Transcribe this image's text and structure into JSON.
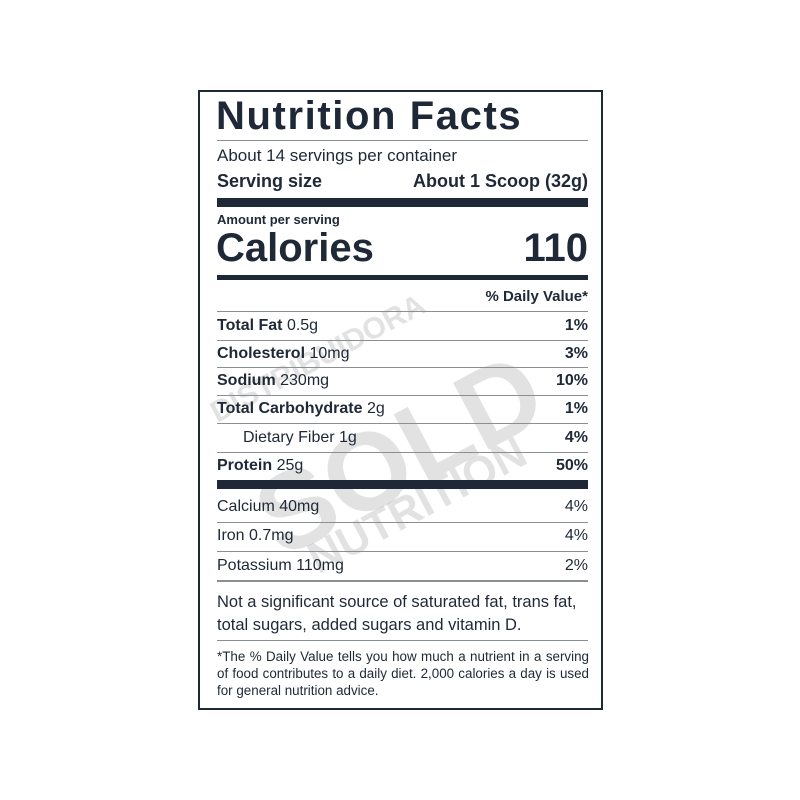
{
  "title": "Nutrition Facts",
  "servings_per_container": "About 14 servings per container",
  "serving_size_label": "Serving size",
  "serving_size_value": "About 1 Scoop (32g)",
  "amount_per_serving": "Amount per serving",
  "calories_label": "Calories",
  "calories_value": "110",
  "daily_value_header": "% Daily Value*",
  "nutrients": [
    {
      "name": "Total Fat",
      "amount": "0.5g",
      "dv": "1%"
    },
    {
      "name": "Cholesterol",
      "amount": "10mg",
      "dv": "3%"
    },
    {
      "name": "Sodium",
      "amount": "230mg",
      "dv": "10%"
    },
    {
      "name": "Total Carbohydrate",
      "amount": "2g",
      "dv": "1%"
    },
    {
      "name": "Dietary Fiber",
      "amount": "1g",
      "dv": "4%"
    },
    {
      "name": "Protein",
      "amount": "25g",
      "dv": "50%"
    }
  ],
  "minerals": [
    {
      "label": "Calcium 40mg",
      "dv": "4%"
    },
    {
      "label": "Iron 0.7mg",
      "dv": "4%"
    },
    {
      "label": "Potassium 110mg",
      "dv": "2%"
    }
  ],
  "note": "Not a significant source of saturated fat, trans fat, total sugars, added sugars and vitamin D.",
  "footnote": "*The % Daily Value tells you how much a nutrient in a serving of food contributes to a daily diet. 2,000 calories a day is used for general nutrition advice.",
  "watermark": {
    "line1": "DISTRIBUIDORA",
    "line2": "SOLD",
    "line3": "NUTRITION"
  },
  "colors": {
    "text": "#1e2836",
    "rule": "#1e2836"
  }
}
